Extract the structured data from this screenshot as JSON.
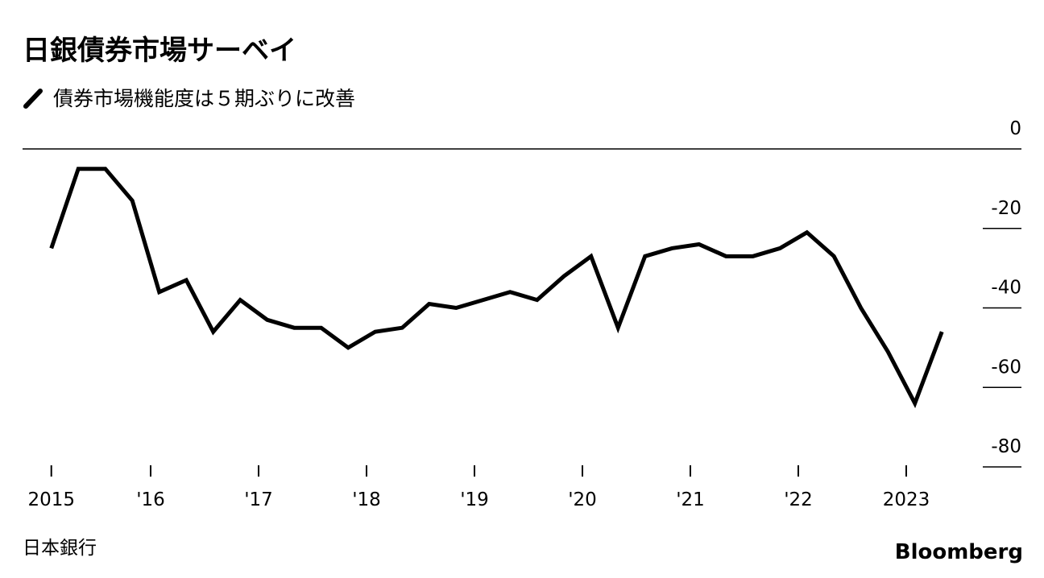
{
  "chart_data": {
    "type": "line",
    "title": "日銀債券市場サーベイ",
    "source": "日本銀行",
    "brand": "Bloomberg",
    "x": [
      2015.08,
      2015.33,
      2015.58,
      2015.83,
      2016.08,
      2016.33,
      2016.58,
      2016.83,
      2017.08,
      2017.33,
      2017.58,
      2017.83,
      2018.08,
      2018.33,
      2018.58,
      2018.83,
      2019.08,
      2019.33,
      2019.58,
      2019.83,
      2020.08,
      2020.33,
      2020.58,
      2020.83,
      2021.08,
      2021.33,
      2021.58,
      2021.83,
      2022.08,
      2022.33,
      2022.58,
      2022.83,
      2023.08,
      2023.33
    ],
    "series": [
      {
        "name": "債券市場機能度は５期ぶりに改善",
        "color": "#000000",
        "values": [
          -25,
          -5,
          -5,
          -13,
          -36,
          -33,
          -46,
          -38,
          -43,
          -45,
          -45,
          -50,
          -46,
          -45,
          -39,
          -40,
          -38,
          -36,
          -38,
          -32,
          -27,
          -45,
          -27,
          -25,
          -24,
          -27,
          -27,
          -25,
          -21,
          -27,
          -40,
          -51,
          -64,
          -46
        ]
      }
    ],
    "xlim": [
      2015,
      2024
    ],
    "xticks": [
      {
        "value": 2015.08,
        "label": "2015"
      },
      {
        "value": 2016,
        "label": "'16"
      },
      {
        "value": 2017,
        "label": "'17"
      },
      {
        "value": 2018,
        "label": "'18"
      },
      {
        "value": 2019,
        "label": "'19"
      },
      {
        "value": 2020,
        "label": "'20"
      },
      {
        "value": 2021,
        "label": "'21"
      },
      {
        "value": 2022,
        "label": "'22"
      },
      {
        "value": 2023,
        "label": "2023"
      }
    ],
    "ylim": [
      -80,
      0
    ],
    "yticks": [
      0,
      -20,
      -40,
      -60,
      -80
    ],
    "grid": true
  }
}
